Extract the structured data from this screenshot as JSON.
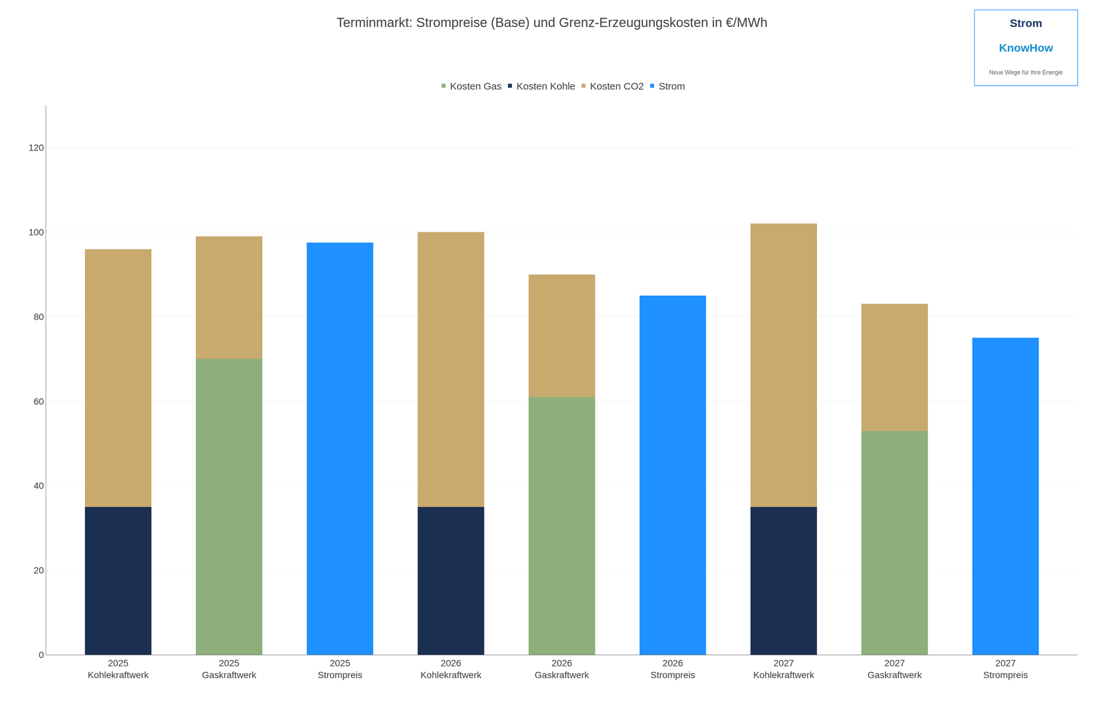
{
  "chart_data": {
    "type": "bar",
    "title": "Terminmarkt: Strompreise (Base) und Grenz-Erzeugungskosten in €/MWh",
    "categories": [
      "2025\nKohlekraftwerk",
      "2025\nGaskraftwerk",
      "2025\nStrompreis",
      "2026\nKohlekraftwerk",
      "2026\nGaskraftwerk",
      "2026\nStrompreis",
      "2027\nKohlekraftwerk",
      "2027\nGaskraftwerk",
      "2027\nStrompreis"
    ],
    "series": [
      {
        "name": "Kosten Gas",
        "color": "#8FAF7A",
        "values": [
          0,
          70,
          0,
          0,
          61,
          0,
          0,
          53,
          0
        ]
      },
      {
        "name": "Kosten Kohle",
        "color": "#1B3050",
        "values": [
          35,
          0,
          0,
          35,
          0,
          0,
          35,
          0,
          0
        ]
      },
      {
        "name": "Kosten CO2",
        "color": "#C8A96E",
        "values": [
          61,
          29,
          0,
          65,
          29,
          0,
          67,
          30,
          0
        ]
      },
      {
        "name": "Strom",
        "color": "#1E90FF",
        "values": [
          0,
          0,
          97.5,
          0,
          0,
          85,
          0,
          0,
          75
        ]
      }
    ],
    "stacked": true,
    "ylim": [
      0,
      130
    ],
    "yticks": [
      0,
      20,
      40,
      60,
      80,
      100,
      120
    ],
    "grid": true,
    "legend": "top",
    "annotations": [
      "Strom",
      "KnowHow",
      "Neue Wege für Ihre Energie"
    ]
  }
}
